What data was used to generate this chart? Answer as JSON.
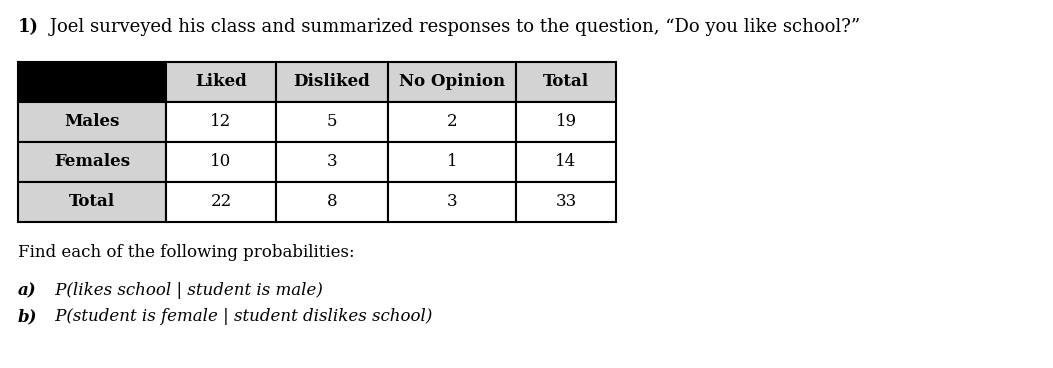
{
  "title_bold": "1)",
  "title_text": " Joel surveyed his class and summarized responses to the question, “Do you like school?”",
  "col_headers": [
    "",
    "Liked",
    "Disliked",
    "No Opinion",
    "Total"
  ],
  "row_headers": [
    "Males",
    "Females",
    "Total"
  ],
  "table_data": [
    [
      12,
      5,
      2,
      19
    ],
    [
      10,
      3,
      1,
      14
    ],
    [
      22,
      8,
      3,
      33
    ]
  ],
  "find_text": "Find each of the following probabilities:",
  "part_a_bold": "a)",
  "part_a_text": " P(likes school | student is male)",
  "part_b_bold": "b)",
  "part_b_text": " P(student is female | student dislikes school)",
  "header_bg": "#000000",
  "row_header_bg": "#d3d3d3",
  "col_header_bg": "#d3d3d3",
  "cell_bg": "#ffffff",
  "border_color": "#000000",
  "fig_width": 10.53,
  "fig_height": 3.68,
  "dpi": 100
}
